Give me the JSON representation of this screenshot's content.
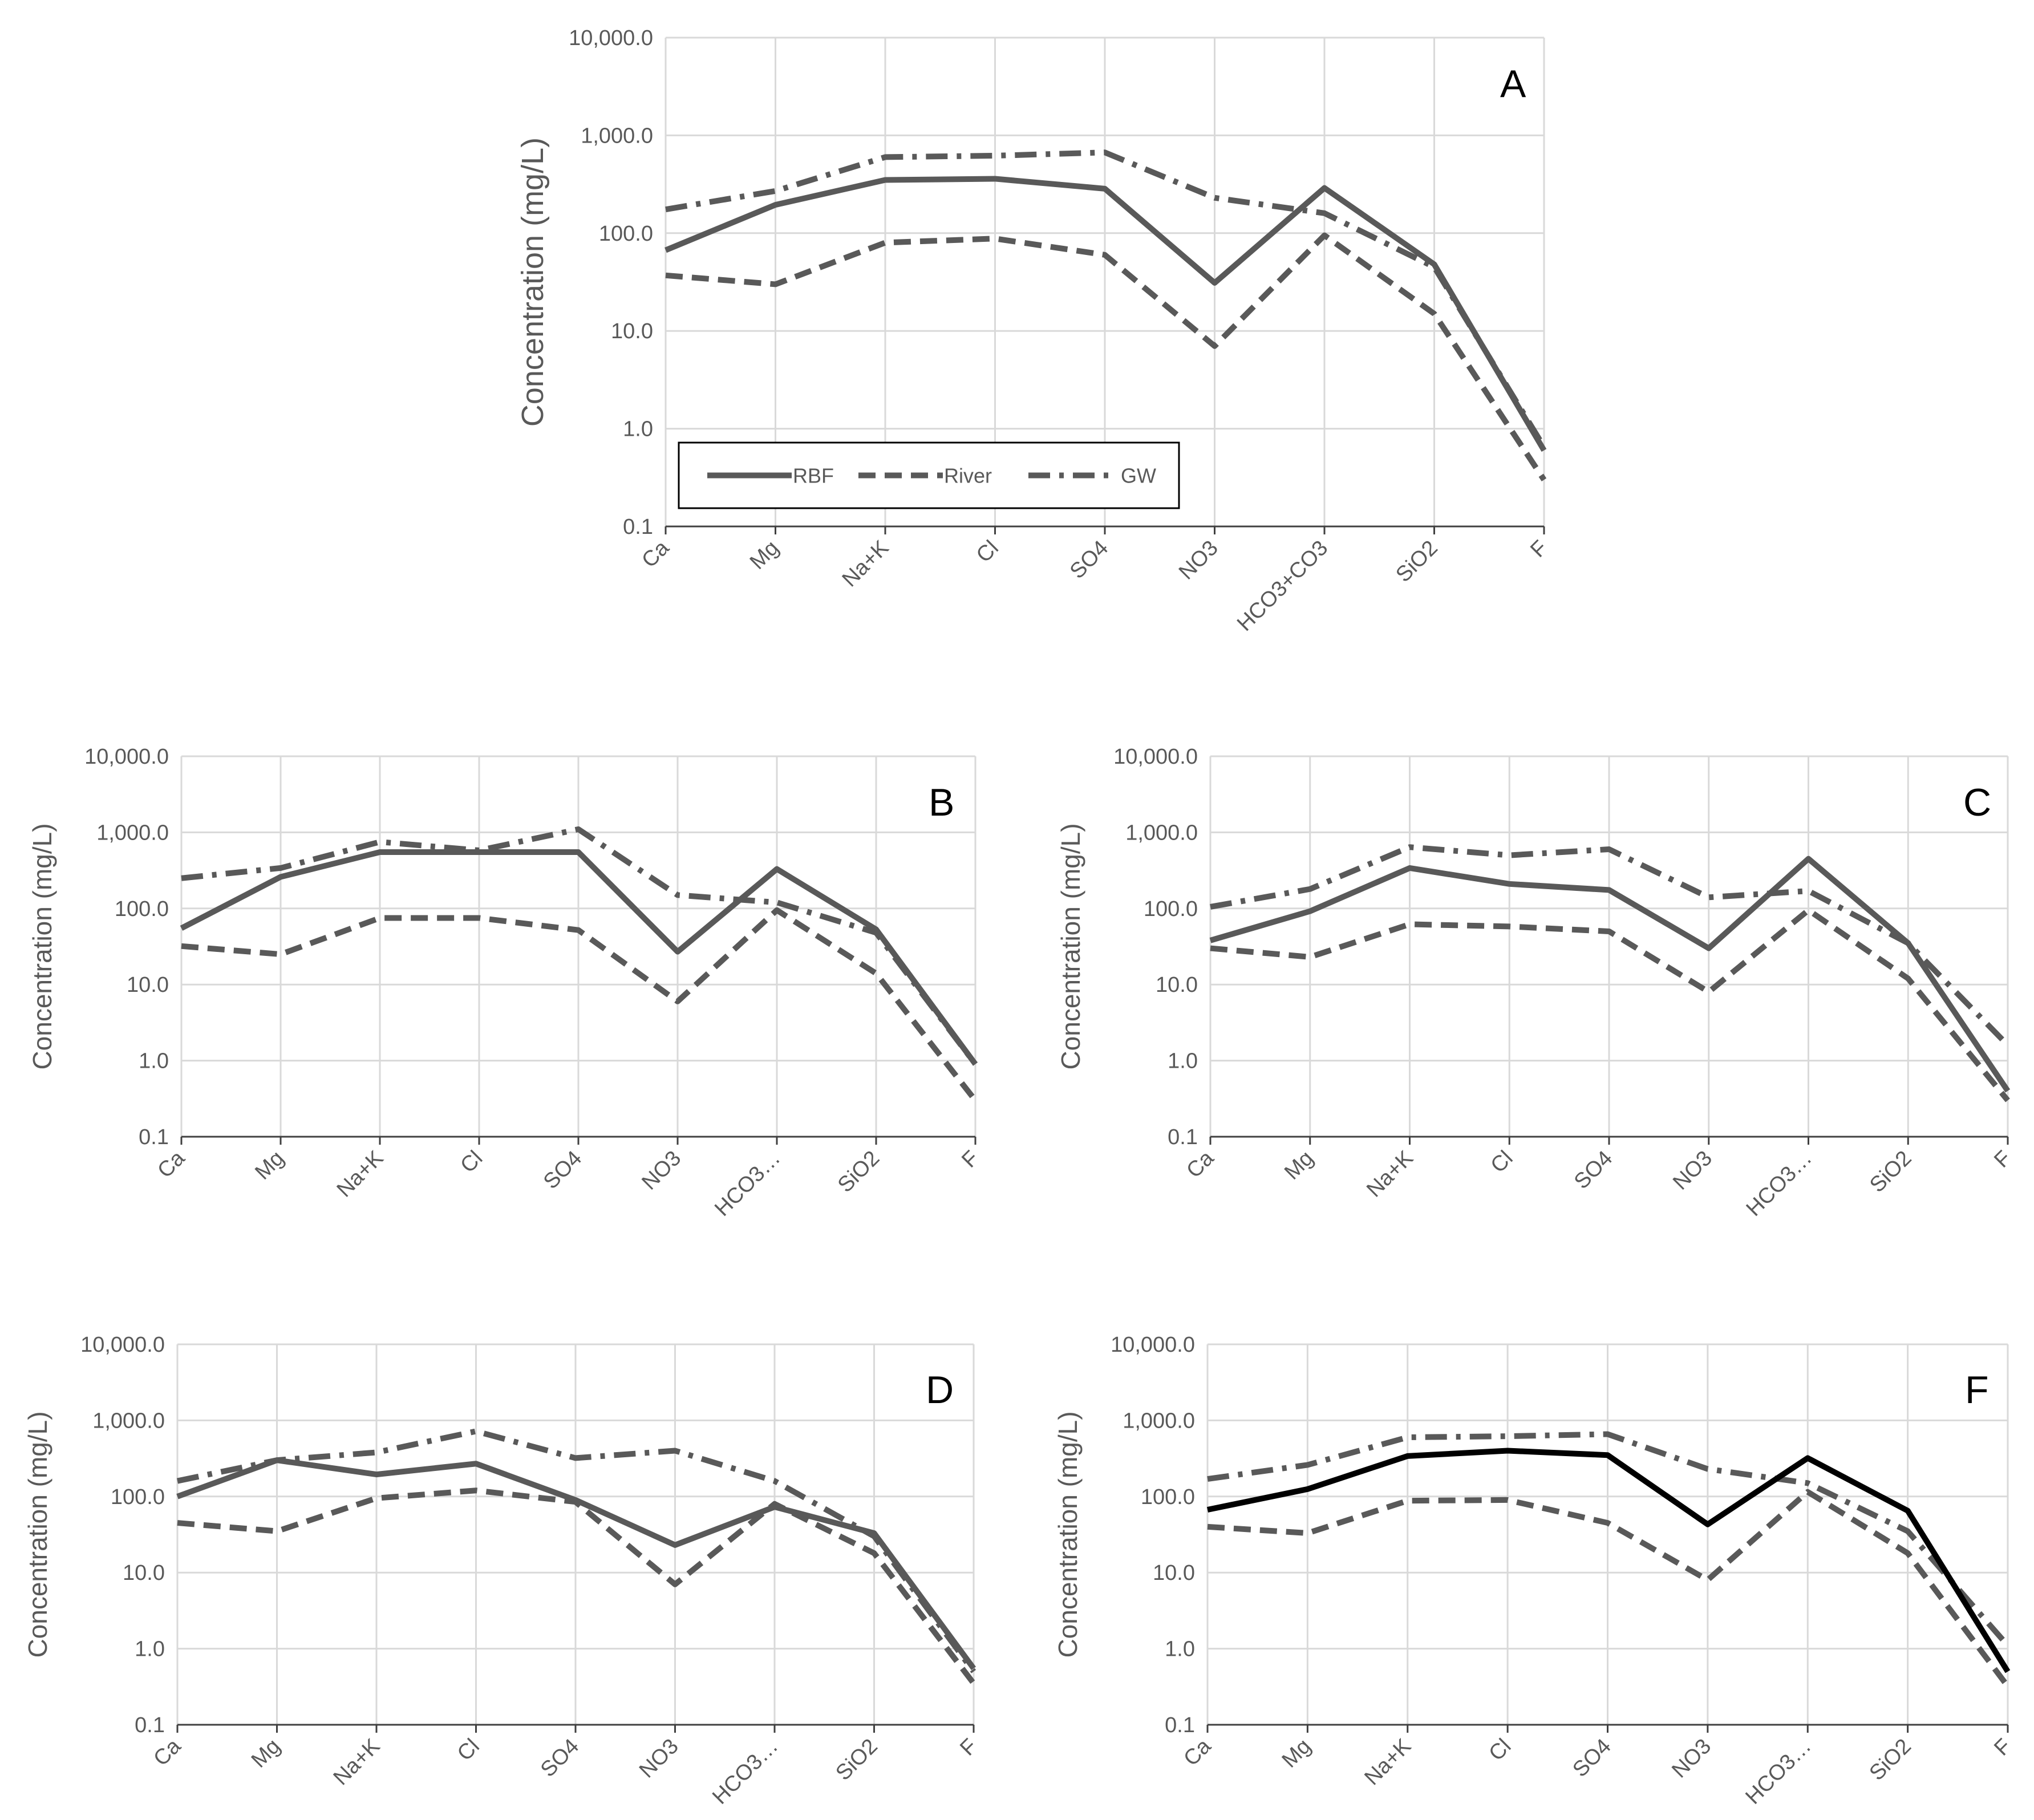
{
  "figure": {
    "legend": {
      "rbf": "RBF",
      "river": "River",
      "gw": "GW"
    },
    "colors": {
      "line": "#595959",
      "black": "#000000",
      "grid": "#d9d9d9",
      "axis": "#404040",
      "text": "#595959"
    }
  },
  "chart_data": [
    {
      "id": "A",
      "type": "line",
      "title": "A",
      "ylabel": "Concentration (mg/L)",
      "ylim": [
        0.1,
        10000
      ],
      "yscale": "log",
      "yticks": [
        "0.1",
        "1.0",
        "10.0",
        "100.0",
        "1,000.0",
        "10,000.0"
      ],
      "categories": [
        "Ca",
        "Mg",
        "Na+K",
        "Cl",
        "SO4",
        "NO3",
        "HCO3+CO3",
        "SiO2",
        "F"
      ],
      "legend_visible": true,
      "series": [
        {
          "name": "RBF",
          "style": "solid",
          "values": [
            67,
            195,
            350,
            360,
            285,
            31,
            290,
            48,
            0.6
          ]
        },
        {
          "name": "River",
          "style": "dashed",
          "values": [
            37,
            30,
            80,
            88,
            60,
            7,
            95,
            15,
            0.3
          ]
        },
        {
          "name": "GW",
          "style": "dashdot",
          "values": [
            175,
            270,
            600,
            620,
            670,
            230,
            160,
            45,
            0.65
          ]
        }
      ]
    },
    {
      "id": "B",
      "type": "line",
      "title": "B",
      "ylabel": "Concentration (mg/L)",
      "ylim": [
        0.1,
        10000
      ],
      "yscale": "log",
      "yticks": [
        "0.1",
        "1.0",
        "10.0",
        "100.0",
        "1,000.0",
        "10,000.0"
      ],
      "categories": [
        "Ca",
        "Mg",
        "Na+K",
        "Cl",
        "SO4",
        "NO3",
        "HCO3…",
        "SiO2",
        "F"
      ],
      "legend_visible": false,
      "series": [
        {
          "name": "RBF",
          "style": "solid",
          "values": [
            55,
            260,
            550,
            550,
            550,
            27,
            330,
            53,
            0.9
          ]
        },
        {
          "name": "River",
          "style": "dashed",
          "values": [
            32,
            25,
            75,
            75,
            52,
            6,
            95,
            14,
            0.3
          ]
        },
        {
          "name": "GW",
          "style": "dashdot",
          "values": [
            250,
            340,
            750,
            580,
            1100,
            150,
            120,
            48,
            0.9
          ]
        }
      ]
    },
    {
      "id": "C",
      "type": "line",
      "title": "C",
      "ylabel": "Concentration (mg/L)",
      "ylim": [
        0.1,
        10000
      ],
      "yscale": "log",
      "yticks": [
        "0.1",
        "1.0",
        "10.0",
        "100.0",
        "1,000.0",
        "10,000.0"
      ],
      "categories": [
        "Ca",
        "Mg",
        "Na+K",
        "Cl",
        "SO4",
        "NO3",
        "HCO3…",
        "SiO2",
        "F"
      ],
      "legend_visible": false,
      "series": [
        {
          "name": "RBF",
          "style": "solid",
          "values": [
            38,
            92,
            340,
            210,
            175,
            30,
            450,
            35,
            0.4
          ]
        },
        {
          "name": "River",
          "style": "dashed",
          "values": [
            30,
            23,
            62,
            58,
            50,
            8,
            95,
            12,
            0.3
          ]
        },
        {
          "name": "GW",
          "style": "dashdot",
          "values": [
            105,
            180,
            640,
            500,
            600,
            140,
            170,
            35,
            1.6
          ]
        }
      ]
    },
    {
      "id": "D",
      "type": "line",
      "title": "D",
      "ylabel": "Concentration (mg/L)",
      "ylim": [
        0.1,
        10000
      ],
      "yscale": "log",
      "yticks": [
        "0.1",
        "1.0",
        "10.0",
        "100.0",
        "1,000.0",
        "10,000.0"
      ],
      "categories": [
        "Ca",
        "Mg",
        "Na+K",
        "Cl",
        "SO4",
        "NO3",
        "HCO3…",
        "SiO2",
        "F"
      ],
      "legend_visible": false,
      "series": [
        {
          "name": "RBF",
          "style": "solid",
          "values": [
            100,
            300,
            195,
            270,
            90,
            23,
            73,
            33,
            0.55
          ]
        },
        {
          "name": "River",
          "style": "dashed",
          "values": [
            45,
            35,
            95,
            120,
            85,
            7,
            80,
            18,
            0.35
          ]
        },
        {
          "name": "GW",
          "style": "dashdot",
          "values": [
            160,
            300,
            380,
            720,
            320,
            400,
            160,
            30,
            0.5
          ]
        }
      ]
    },
    {
      "id": "F",
      "type": "line",
      "title": "F",
      "ylabel": "Concentration (mg/L)",
      "ylim": [
        0.1,
        10000
      ],
      "yscale": "log",
      "yticks": [
        "0.1",
        "1.0",
        "10.0",
        "100.0",
        "1,000.0",
        "10,000.0"
      ],
      "categories": [
        "Ca",
        "Mg",
        "Na+K",
        "Cl",
        "SO4",
        "NO3",
        "HCO3…",
        "SiO2",
        "F"
      ],
      "legend_visible": false,
      "series": [
        {
          "name": "RBF",
          "style": "solid-black",
          "values": [
            67,
            125,
            340,
            400,
            350,
            43,
            320,
            65,
            0.5
          ]
        },
        {
          "name": "River",
          "style": "dashed",
          "values": [
            40,
            33,
            88,
            90,
            45,
            8,
            115,
            18,
            0.32
          ]
        },
        {
          "name": "GW",
          "style": "dashdot",
          "values": [
            170,
            260,
            600,
            620,
            660,
            230,
            150,
            35,
            1.1
          ]
        }
      ]
    }
  ]
}
